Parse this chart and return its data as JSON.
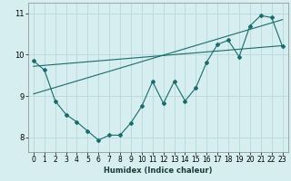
{
  "xlabel": "Humidex (Indice chaleur)",
  "bg_color": "#d6eef0",
  "line_color": "#1a6b6b",
  "grid_color": "#b8d8dc",
  "ylim": [
    7.65,
    11.25
  ],
  "xlim": [
    -0.5,
    23.5
  ],
  "yticks": [
    8,
    9,
    10,
    11
  ],
  "xticks": [
    0,
    1,
    2,
    3,
    4,
    5,
    6,
    7,
    8,
    9,
    10,
    11,
    12,
    13,
    14,
    15,
    16,
    17,
    18,
    19,
    20,
    21,
    22,
    23
  ],
  "line1_x": [
    0,
    1,
    2,
    3,
    4,
    5,
    6,
    7,
    8,
    9,
    10,
    11,
    12,
    13,
    14,
    15,
    16,
    17,
    18,
    19,
    20,
    21,
    22,
    23
  ],
  "line1_y": [
    9.85,
    9.63,
    8.88,
    8.55,
    8.37,
    8.15,
    7.93,
    8.05,
    8.05,
    8.35,
    8.75,
    9.35,
    8.82,
    9.35,
    8.88,
    9.2,
    9.82,
    10.25,
    10.35,
    9.95,
    10.7,
    10.95,
    10.9,
    10.2
  ],
  "line2_x": [
    0,
    23
  ],
  "line2_y": [
    9.72,
    10.22
  ],
  "line3_x": [
    0,
    23
  ],
  "line3_y": [
    9.05,
    10.85
  ]
}
